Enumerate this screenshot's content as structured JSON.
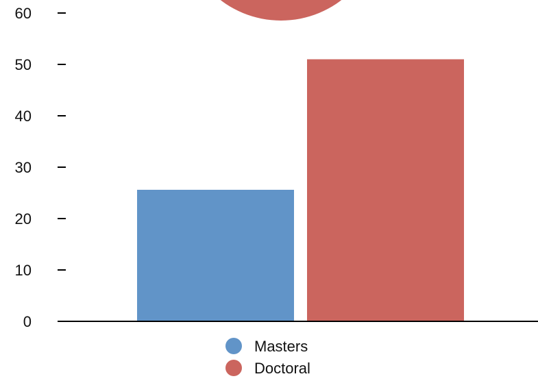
{
  "chart_data": {
    "type": "bar",
    "categories": [
      "Masters",
      "Doctoral"
    ],
    "values": [
      25.6,
      51
    ],
    "yticks": [
      0,
      10,
      20,
      30,
      40,
      50,
      60
    ],
    "ylim": [
      0,
      60
    ],
    "grid": false,
    "legend_position": "bottom-center",
    "colors": {
      "Masters": "#6194c8",
      "Doctoral": "#cb655e"
    }
  },
  "legend": [
    {
      "label": "Masters",
      "color": "#6194c8"
    },
    {
      "label": "Doctoral",
      "color": "#cb655e"
    }
  ],
  "decorations": {
    "top_circle_color": "#cb655e"
  }
}
